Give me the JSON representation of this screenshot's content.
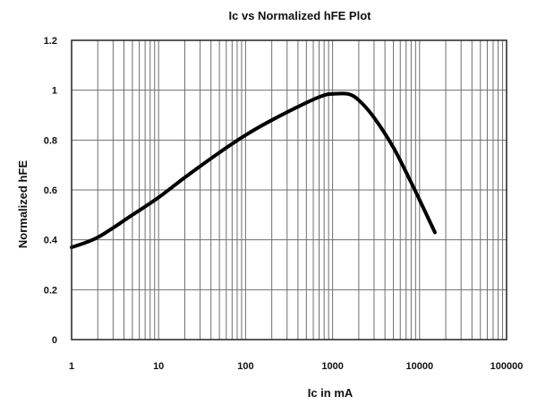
{
  "chart_data": {
    "type": "line",
    "title": "Ic vs Normalized hFE Plot",
    "xlabel": "Ic in mA",
    "ylabel": "Normalized hFE",
    "x_scale": "log",
    "xlim": [
      1,
      100000
    ],
    "ylim": [
      0,
      1.2
    ],
    "grid": true,
    "legend": "none",
    "x_ticks": [
      {
        "value": 1,
        "label": "1"
      },
      {
        "value": 10,
        "label": "10"
      },
      {
        "value": 100,
        "label": "100"
      },
      {
        "value": 1000,
        "label": "1000"
      },
      {
        "value": 10000,
        "label": "10000"
      },
      {
        "value": 100000,
        "label": "100000"
      }
    ],
    "y_ticks": [
      {
        "value": 0,
        "label": "0"
      },
      {
        "value": 0.2,
        "label": "0.2"
      },
      {
        "value": 0.4,
        "label": "0.4"
      },
      {
        "value": 0.6,
        "label": "0.6"
      },
      {
        "value": 0.8,
        "label": "0.8"
      },
      {
        "value": 1,
        "label": "1"
      },
      {
        "value": 1.2,
        "label": "1.2"
      }
    ],
    "series": [
      {
        "color": "#000000",
        "x": [
          1,
          2,
          5,
          10,
          20,
          50,
          100,
          200,
          500,
          800,
          1000,
          1500,
          2000,
          3000,
          5000,
          8000,
          10000,
          15000
        ],
        "y": [
          0.37,
          0.41,
          0.5,
          0.57,
          0.65,
          0.75,
          0.82,
          0.88,
          0.95,
          0.98,
          0.985,
          0.985,
          0.96,
          0.89,
          0.77,
          0.63,
          0.56,
          0.43
        ]
      }
    ]
  }
}
